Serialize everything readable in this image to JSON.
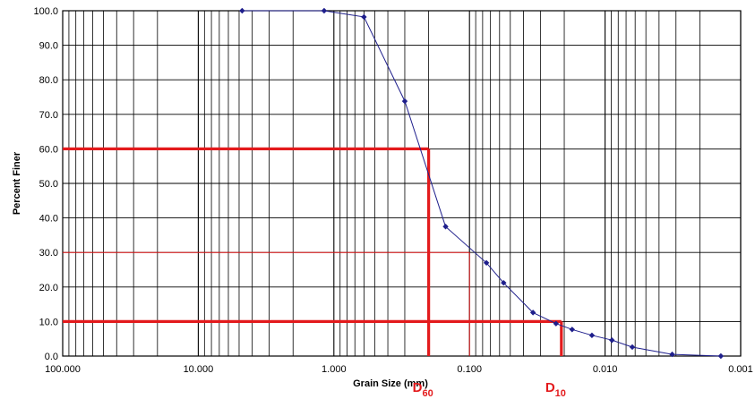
{
  "chart_data": {
    "type": "line",
    "x_scale": "log",
    "x_reversed": true,
    "xlim": [
      100,
      0.001
    ],
    "ylim": [
      0,
      100
    ],
    "xlabel": "Grain Size (mm)",
    "ylabel": "Percent Finer",
    "x_tick_labels": [
      "100.000",
      "10.000",
      "1.000",
      "0.100",
      "0.010",
      "0.001"
    ],
    "y_tick_labels": [
      "0.0",
      "10.0",
      "20.0",
      "30.0",
      "40.0",
      "50.0",
      "60.0",
      "70.0",
      "80.0",
      "90.0",
      "100.0"
    ],
    "grid": true,
    "series": [
      {
        "color": "#1f1f8c",
        "marker": "diamond",
        "x": [
          4.75,
          1.18,
          0.6,
          0.3,
          0.15,
          0.075,
          0.056,
          0.034,
          0.023,
          0.0175,
          0.0125,
          0.0089,
          0.0063,
          0.0032,
          0.0014
        ],
        "y": [
          100.0,
          100.0,
          98.2,
          73.8,
          37.5,
          27.0,
          21.2,
          12.6,
          9.4,
          7.7,
          6.0,
          4.6,
          2.6,
          0.5,
          0.0
        ]
      }
    ],
    "annotations": {
      "color": "#e31a1c",
      "d60": {
        "label": "D",
        "sub": "60",
        "x": 0.2,
        "y": 60
      },
      "d10": {
        "label": "D",
        "sub": "10",
        "x": 0.021,
        "y": 10
      },
      "d30": {
        "x": 0.1,
        "y": 30
      }
    }
  }
}
